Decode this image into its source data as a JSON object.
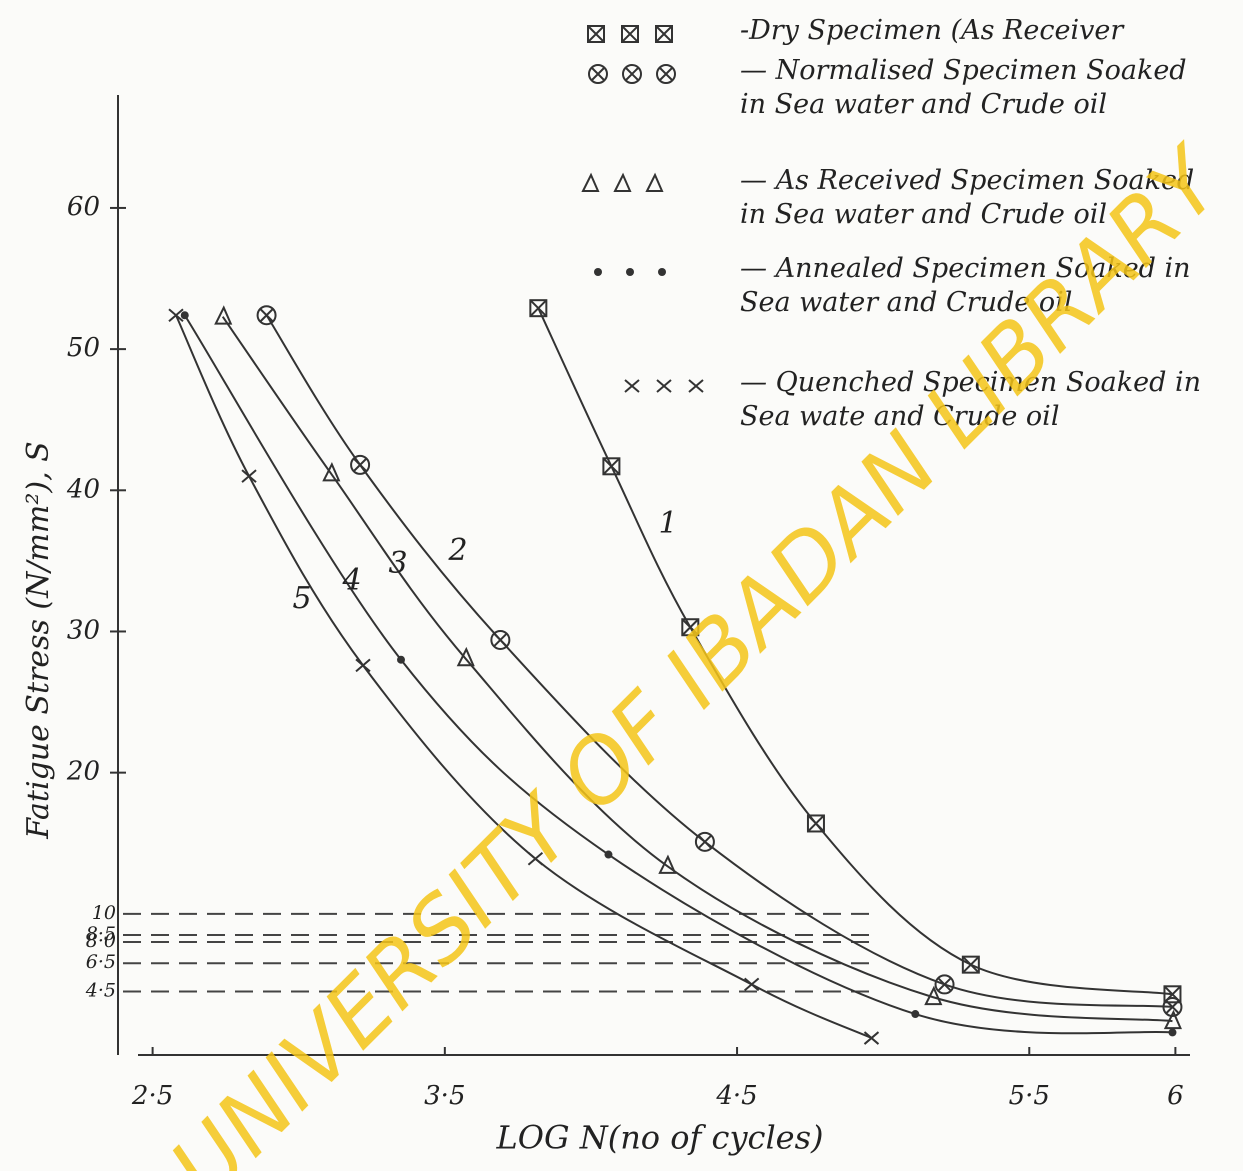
{
  "chart_data": {
    "type": "line",
    "x_label": "LOG N(no of cycles)",
    "y_label": "Fatigue Stress (N/mm²), S",
    "watermark": "UNIVERSITY OF IBADAN LIBRARY",
    "xlim": [
      2.45,
      6.05
    ],
    "ylim": [
      0,
      68
    ],
    "xticks": [
      {
        "value": 2.5,
        "label": "2·5"
      },
      {
        "value": 3.5,
        "label": "3·5"
      },
      {
        "value": 4.5,
        "label": "4·5"
      },
      {
        "value": 5.5,
        "label": "5·5"
      },
      6
    ],
    "yticks": [
      20,
      30,
      40,
      50,
      60
    ],
    "yticks_minor": [
      10,
      {
        "value": 8.5,
        "label": "8·5"
      },
      {
        "value": 8.0,
        "label": "8·0"
      },
      {
        "value": 6.5,
        "label": "6·5"
      },
      {
        "value": 4.5,
        "label": "4·5"
      }
    ],
    "series": [
      {
        "name": "-Dry Specimen (As Receiver",
        "label": "1",
        "marker": "square",
        "color": "#333",
        "x": [
          3.82,
          4.07,
          4.34,
          4.77,
          5.3,
          5.99
        ],
        "values": [
          52.9,
          41.7,
          30.3,
          16.4,
          6.4,
          4.3
        ]
      },
      {
        "name": "— Normalised Specimen Soaked in Sea water and Crude oil",
        "label": "2",
        "marker": "circle",
        "color": "#333",
        "x": [
          2.89,
          3.21,
          3.69,
          4.39,
          5.21,
          5.99
        ],
        "values": [
          52.4,
          41.8,
          29.4,
          15.1,
          5.0,
          3.4
        ]
      },
      {
        "name": "— As Received Specimen Soaked in Sea water and Crude oil",
        "label": "3",
        "marker": "triangle",
        "color": "#333",
        "x": [
          2.74,
          3.11,
          3.57,
          4.26,
          5.17,
          5.99
        ],
        "values": [
          52.3,
          41.2,
          28.1,
          13.4,
          4.1,
          2.4
        ]
      },
      {
        "name": "— Annealed Specimen Soaked in Sea water and Crude oil",
        "label": "4",
        "marker": "dot",
        "color": "#333",
        "x": [
          2.61,
          3.35,
          4.06,
          5.11,
          5.99
        ],
        "values": [
          52.4,
          28.0,
          14.2,
          2.9,
          1.6
        ]
      },
      {
        "name": "— Quenched Specimen Soaked in Sea wate and Crude oil",
        "label": "5",
        "marker": "x",
        "color": "#333",
        "x": [
          2.58,
          2.83,
          3.22,
          3.81,
          4.55,
          4.96
        ],
        "values": [
          52.4,
          41.0,
          27.6,
          13.9,
          5.0,
          1.2
        ]
      }
    ]
  }
}
